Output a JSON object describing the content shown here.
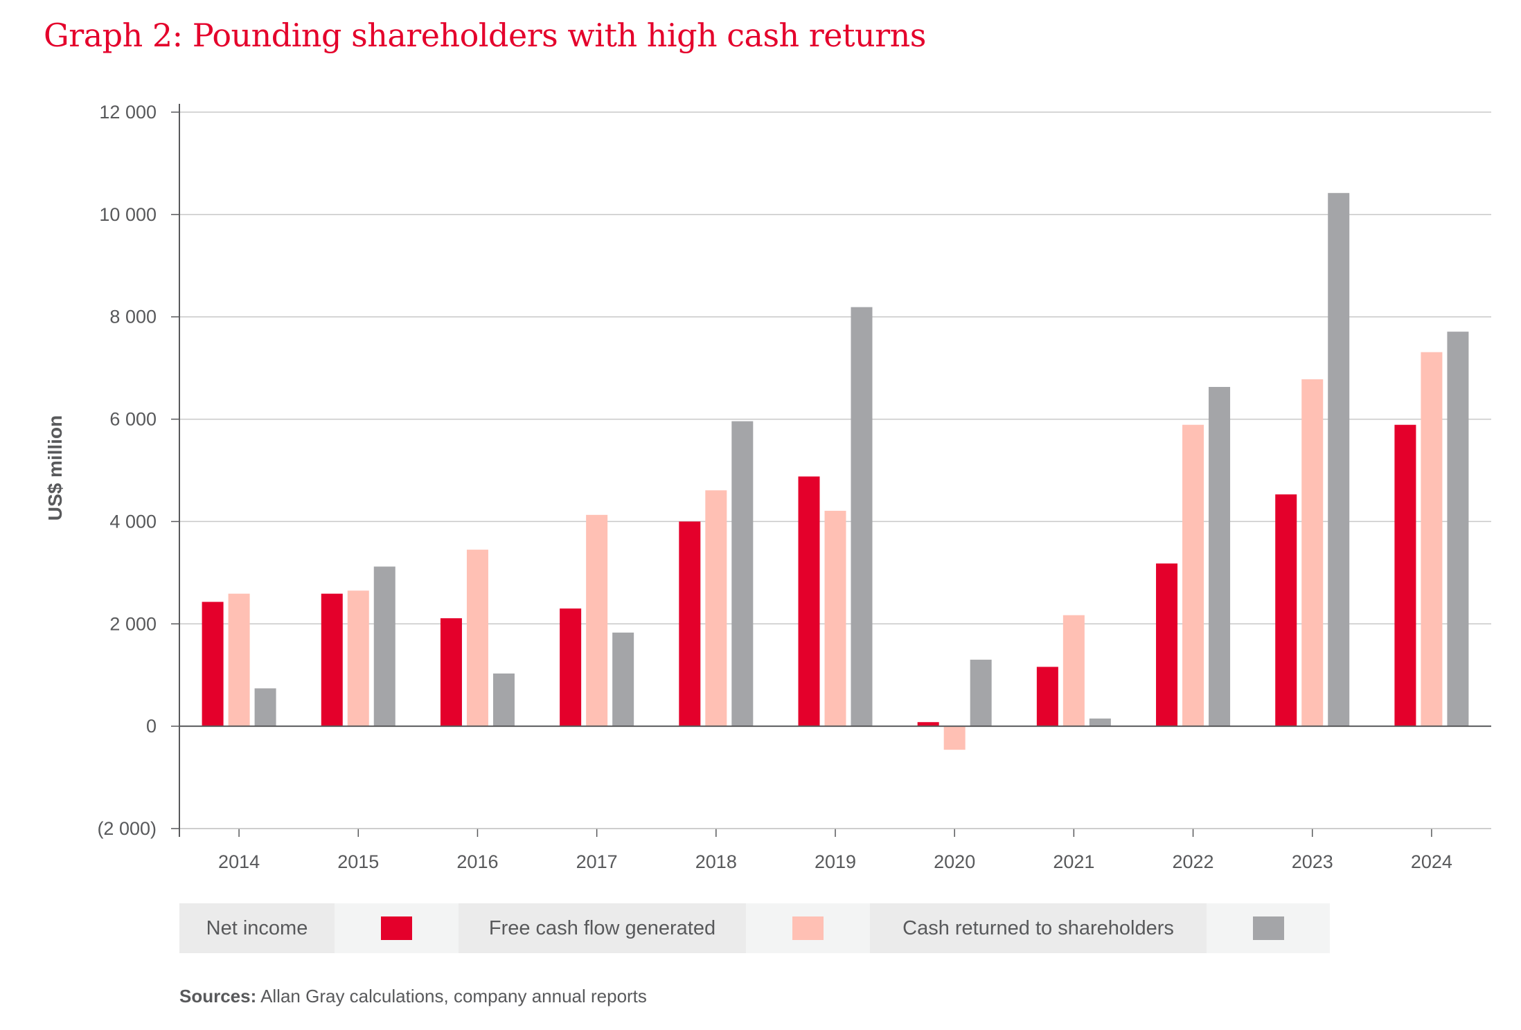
{
  "title": "Graph 2: Pounding shareholders with high cash returns",
  "chart_data": {
    "type": "bar",
    "ylabel": "US$ million",
    "ylim": [
      -2000,
      12000
    ],
    "yticks": [
      {
        "value": 12000,
        "label": "12 000"
      },
      {
        "value": 10000,
        "label": "10 000"
      },
      {
        "value": 8000,
        "label": "8 000"
      },
      {
        "value": 6000,
        "label": "6 000"
      },
      {
        "value": 4000,
        "label": "4 000"
      },
      {
        "value": 2000,
        "label": "2 000"
      },
      {
        "value": 0,
        "label": "0"
      },
      {
        "value": -2000,
        "label": "(2 000)"
      }
    ],
    "grid": true,
    "legend_position": "bottom",
    "categories": [
      "2014",
      "2015",
      "2016",
      "2017",
      "2018",
      "2019",
      "2020",
      "2021",
      "2022",
      "2023",
      "2024"
    ],
    "series": [
      {
        "name": "Net income",
        "color": "#e4002b",
        "values": [
          2430,
          2590,
          2110,
          2300,
          4000,
          4880,
          80,
          1160,
          3180,
          4530,
          5890
        ]
      },
      {
        "name": "Free cash flow generated",
        "color": "#ffc0b4",
        "values": [
          2590,
          2650,
          3450,
          4130,
          4610,
          4210,
          -460,
          2170,
          5890,
          6780,
          7310
        ]
      },
      {
        "name": "Cash returned to shareholders",
        "color": "#a4a5a8",
        "values": [
          740,
          3120,
          1030,
          1830,
          5960,
          8190,
          1300,
          150,
          6630,
          10420,
          7710
        ]
      }
    ],
    "negative_label_color": "#e4002b"
  },
  "sources": {
    "label": "Sources:",
    "text": "Allan Gray calculations, company annual reports"
  }
}
